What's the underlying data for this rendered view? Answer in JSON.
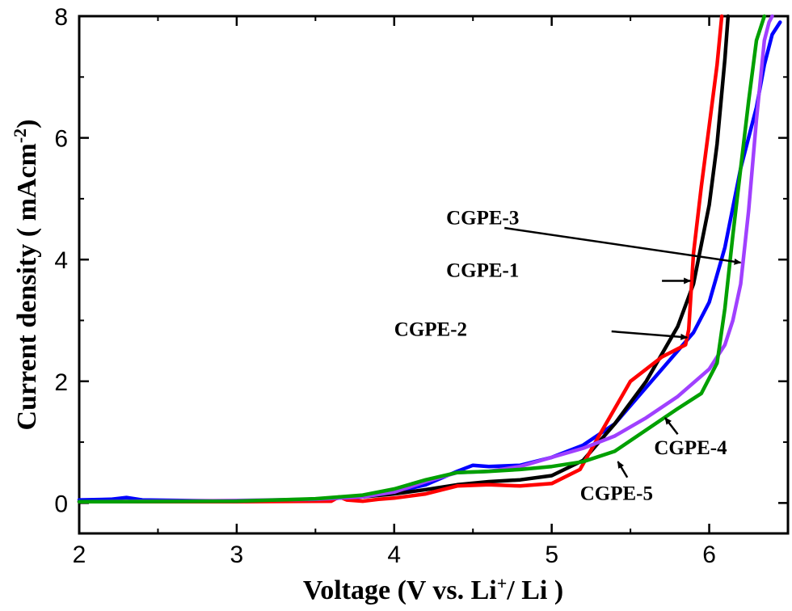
{
  "chart_data": {
    "type": "line",
    "xlabel": "Voltage (V vs. Li",
    "xlabel_sup": "+",
    "xlabel_tail": "/ Li )",
    "ylabel": "Current density ( mAcm",
    "ylabel_sup": "-2",
    "ylabel_tail": ")",
    "xlim": [
      2,
      6.5
    ],
    "ylim": [
      -0.5,
      8
    ],
    "xticks": [
      "2",
      "3",
      "4",
      "5",
      "6"
    ],
    "yticks": [
      "0",
      "2",
      "4",
      "6",
      "8"
    ],
    "grid": false,
    "series": [
      {
        "name": "CGPE-3",
        "color": "#0000ff",
        "x": [
          2.0,
          2.2,
          2.3,
          2.4,
          3.0,
          3.5,
          3.8,
          4.0,
          4.2,
          4.4,
          4.5,
          4.6,
          4.8,
          5.0,
          5.2,
          5.4,
          5.6,
          5.8,
          5.9,
          6.0,
          6.1,
          6.2,
          6.3,
          6.35,
          6.4,
          6.45
        ],
        "y": [
          0.05,
          0.06,
          0.09,
          0.05,
          0.03,
          0.06,
          0.1,
          0.18,
          0.3,
          0.52,
          0.62,
          0.6,
          0.62,
          0.75,
          0.95,
          1.3,
          1.9,
          2.5,
          2.8,
          3.3,
          4.2,
          5.5,
          6.5,
          7.2,
          7.7,
          7.9
        ]
      },
      {
        "name": "CGPE-1",
        "color": "#000000",
        "x": [
          2.0,
          3.0,
          3.5,
          3.8,
          4.0,
          4.2,
          4.4,
          4.6,
          4.8,
          5.0,
          5.2,
          5.4,
          5.6,
          5.8,
          5.9,
          6.0,
          6.05,
          6.1,
          6.12
        ],
        "y": [
          0.02,
          0.03,
          0.06,
          0.1,
          0.15,
          0.22,
          0.3,
          0.35,
          0.38,
          0.45,
          0.7,
          1.3,
          2.0,
          2.9,
          3.6,
          4.9,
          5.9,
          7.3,
          8.0
        ]
      },
      {
        "name": "CGPE-2",
        "color": "#ff0000",
        "x": [
          2.0,
          3.0,
          3.6,
          3.65,
          3.7,
          3.8,
          3.9,
          4.0,
          4.2,
          4.4,
          4.6,
          4.8,
          5.0,
          5.18,
          5.3,
          5.5,
          5.7,
          5.85,
          5.87,
          5.9,
          5.95,
          6.0,
          6.05,
          6.08
        ],
        "y": [
          0.02,
          0.02,
          0.03,
          0.1,
          0.05,
          0.03,
          0.06,
          0.08,
          0.15,
          0.28,
          0.3,
          0.28,
          0.32,
          0.55,
          1.1,
          2.0,
          2.4,
          2.6,
          2.85,
          4.1,
          5.2,
          6.2,
          7.2,
          8.0
        ]
      },
      {
        "name": "CGPE-4",
        "color": "#a040ff",
        "x": [
          2.0,
          3.0,
          3.5,
          3.8,
          4.0,
          4.2,
          4.4,
          4.6,
          4.8,
          5.0,
          5.2,
          5.4,
          5.6,
          5.8,
          6.0,
          6.1,
          6.15,
          6.2,
          6.25,
          6.3,
          6.35,
          6.38,
          6.4
        ],
        "y": [
          0.02,
          0.04,
          0.06,
          0.1,
          0.18,
          0.35,
          0.5,
          0.52,
          0.6,
          0.75,
          0.9,
          1.1,
          1.4,
          1.75,
          2.2,
          2.6,
          3.0,
          3.6,
          4.8,
          6.3,
          7.6,
          7.9,
          8.0
        ]
      },
      {
        "name": "CGPE-5",
        "color": "#00a000",
        "x": [
          2.0,
          3.0,
          3.5,
          3.8,
          4.0,
          4.2,
          4.4,
          4.6,
          4.8,
          5.0,
          5.2,
          5.4,
          5.6,
          5.8,
          5.95,
          6.05,
          6.1,
          6.15,
          6.2,
          6.25,
          6.3,
          6.35
        ],
        "y": [
          0.02,
          0.03,
          0.07,
          0.13,
          0.23,
          0.38,
          0.5,
          0.52,
          0.55,
          0.6,
          0.68,
          0.85,
          1.2,
          1.55,
          1.8,
          2.3,
          3.2,
          4.4,
          5.5,
          6.6,
          7.6,
          8.0
        ]
      }
    ],
    "annotations": [
      {
        "text": "CGPE-3",
        "series": "CGPE-3",
        "label_at": [
          4.33,
          4.58
        ],
        "arrow_from": [
          4.7,
          4.52
        ],
        "arrow_to": [
          6.2,
          3.95
        ]
      },
      {
        "text": "CGPE-1",
        "series": "CGPE-1",
        "label_at": [
          4.33,
          3.72
        ],
        "arrow_from": [
          5.7,
          3.65
        ],
        "arrow_to": [
          5.88,
          3.65
        ]
      },
      {
        "text": "CGPE-2",
        "series": "CGPE-2",
        "label_at": [
          4.0,
          2.75
        ],
        "arrow_from": [
          5.38,
          2.82
        ],
        "arrow_to": [
          5.86,
          2.72
        ]
      },
      {
        "text": "CGPE-4",
        "series": "CGPE-4",
        "label_at": [
          5.65,
          0.8
        ],
        "arrow_from": [
          5.8,
          1.13
        ],
        "arrow_to": [
          5.72,
          1.4
        ]
      },
      {
        "text": "CGPE-5",
        "series": "CGPE-5",
        "label_at": [
          5.18,
          0.05
        ],
        "arrow_from": [
          5.48,
          0.42
        ],
        "arrow_to": [
          5.42,
          0.68
        ]
      }
    ]
  }
}
